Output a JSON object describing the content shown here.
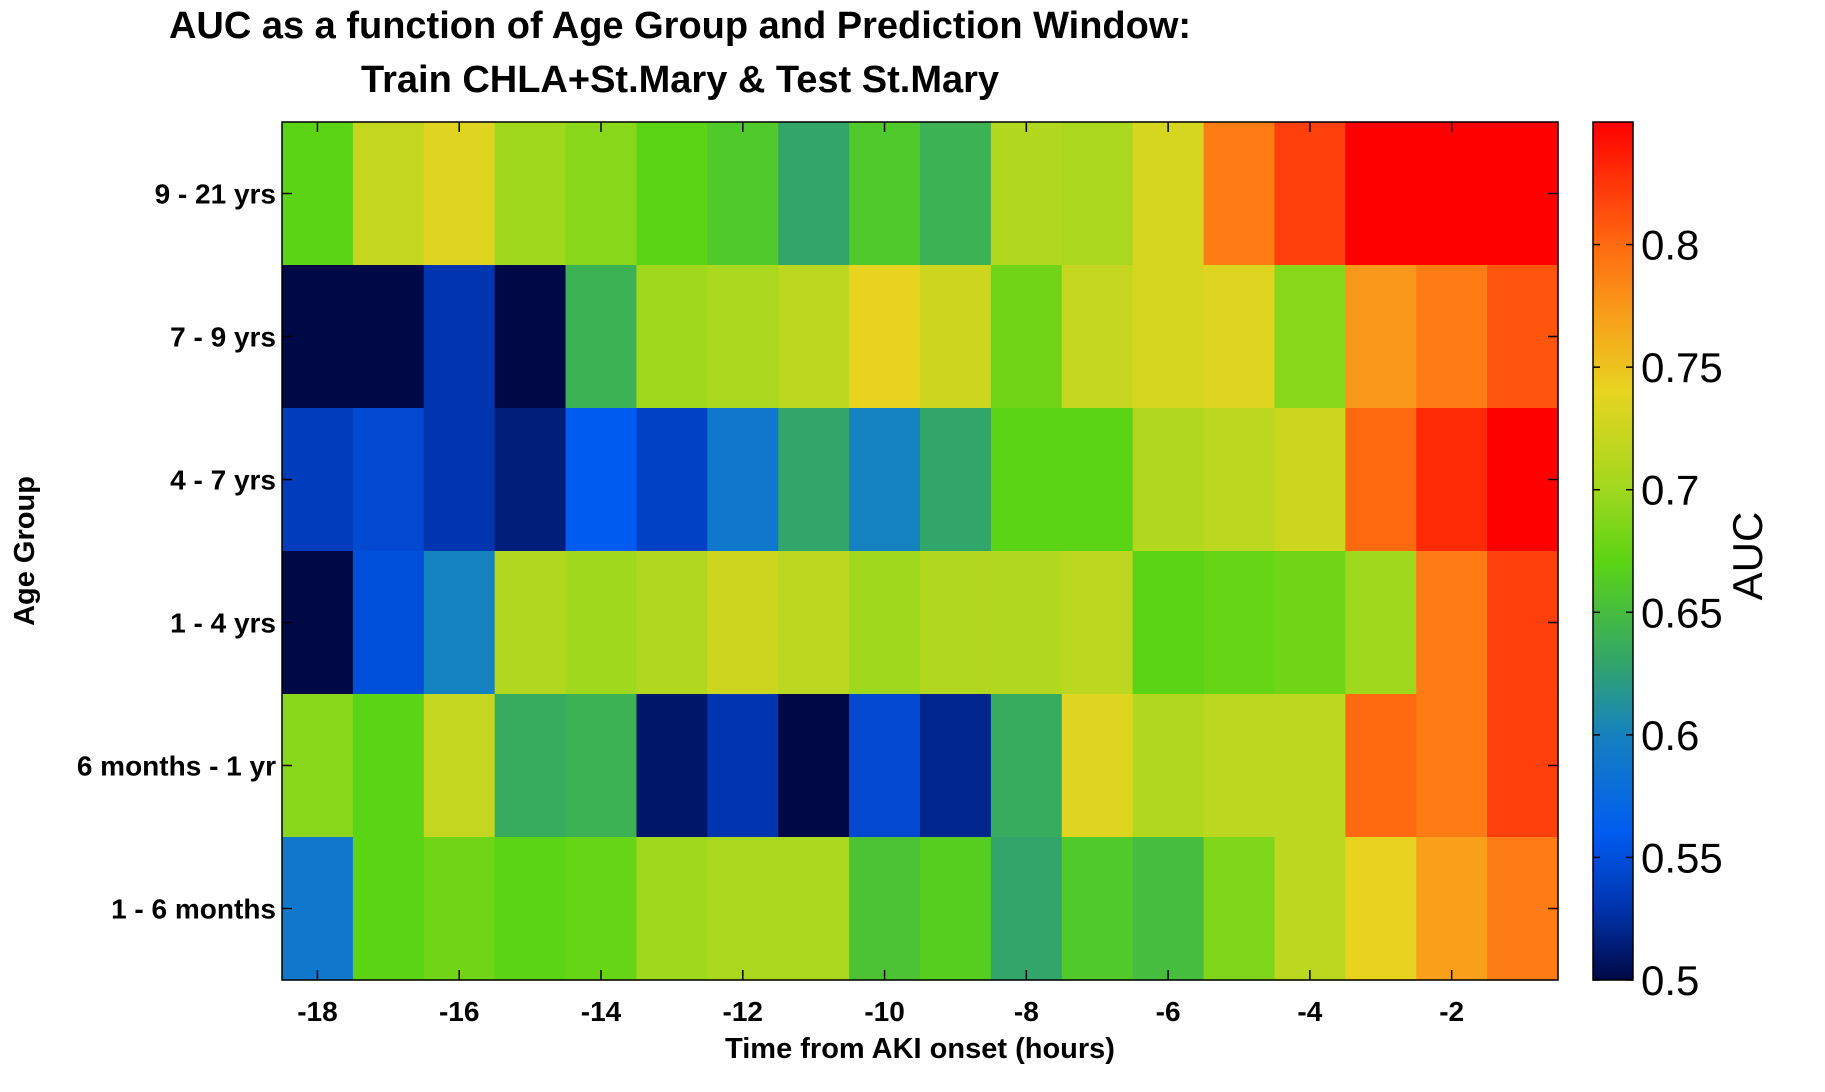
{
  "chart_data": {
    "type": "heatmap",
    "title": "AUC as a function of Age Group and Prediction Window:",
    "subtitle": "Train CHLA+St.Mary & Test St.Mary",
    "xlabel": "Time from AKI onset (hours)",
    "ylabel": "Age Group",
    "x": [
      -18,
      -17,
      -16,
      -15,
      -14,
      -13,
      -12,
      -11,
      -10,
      -9,
      -8,
      -7,
      -6,
      -5,
      -4,
      -3,
      -2,
      -1
    ],
    "xticks": [
      -18,
      -16,
      -14,
      -12,
      -10,
      -8,
      -6,
      -4,
      -2
    ],
    "xtick_labels": [
      "-18",
      "-16",
      "-14",
      "-12",
      "-10",
      "-8",
      "-6",
      "-4",
      "-2"
    ],
    "xlim": [
      -18.5,
      -0.5
    ],
    "categories": [
      "9 - 21 yrs",
      "7 - 9 yrs",
      "4 - 7 yrs",
      "1 - 4 yrs",
      "6 months - 1 yr",
      "1 - 6 months"
    ],
    "values": [
      [
        0.67,
        0.72,
        0.735,
        0.7,
        0.69,
        0.67,
        0.66,
        0.63,
        0.66,
        0.64,
        0.71,
        0.705,
        0.73,
        0.79,
        0.82,
        0.85,
        0.85,
        0.85
      ],
      [
        0.5,
        0.5,
        0.53,
        0.5,
        0.64,
        0.7,
        0.705,
        0.715,
        0.74,
        0.725,
        0.68,
        0.72,
        0.73,
        0.735,
        0.69,
        0.775,
        0.79,
        0.81
      ],
      [
        0.535,
        0.545,
        0.53,
        0.515,
        0.56,
        0.54,
        0.59,
        0.63,
        0.6,
        0.63,
        0.67,
        0.67,
        0.71,
        0.715,
        0.725,
        0.8,
        0.83,
        0.85
      ],
      [
        0.5,
        0.55,
        0.6,
        0.71,
        0.7,
        0.71,
        0.725,
        0.715,
        0.7,
        0.71,
        0.71,
        0.715,
        0.67,
        0.675,
        0.68,
        0.7,
        0.79,
        0.82
      ],
      [
        0.69,
        0.67,
        0.72,
        0.635,
        0.64,
        0.51,
        0.53,
        0.5,
        0.545,
        0.52,
        0.635,
        0.735,
        0.71,
        0.715,
        0.715,
        0.8,
        0.79,
        0.82
      ],
      [
        0.59,
        0.67,
        0.68,
        0.67,
        0.675,
        0.7,
        0.705,
        0.705,
        0.655,
        0.665,
        0.63,
        0.66,
        0.65,
        0.685,
        0.715,
        0.74,
        0.77,
        0.79
      ]
    ],
    "colorbar": {
      "label": "AUC",
      "range": [
        0.5,
        0.85
      ],
      "ticks": [
        0.5,
        0.55,
        0.6,
        0.65,
        0.7,
        0.75,
        0.8
      ],
      "tick_labels": [
        "0.5",
        "0.55",
        "0.6",
        "0.65",
        "0.7",
        "0.75",
        "0.8"
      ],
      "colormap": [
        {
          "v": 0.5,
          "color": "#000846"
        },
        {
          "v": 0.53,
          "color": "#0035b0"
        },
        {
          "v": 0.56,
          "color": "#005cf0"
        },
        {
          "v": 0.6,
          "color": "#1582c0"
        },
        {
          "v": 0.63,
          "color": "#32a66a"
        },
        {
          "v": 0.67,
          "color": "#5ad414"
        },
        {
          "v": 0.7,
          "color": "#a0d81e"
        },
        {
          "v": 0.74,
          "color": "#e8d420"
        },
        {
          "v": 0.77,
          "color": "#f8a01a"
        },
        {
          "v": 0.8,
          "color": "#ff6a10"
        },
        {
          "v": 0.85,
          "color": "#ff0000"
        }
      ]
    }
  }
}
